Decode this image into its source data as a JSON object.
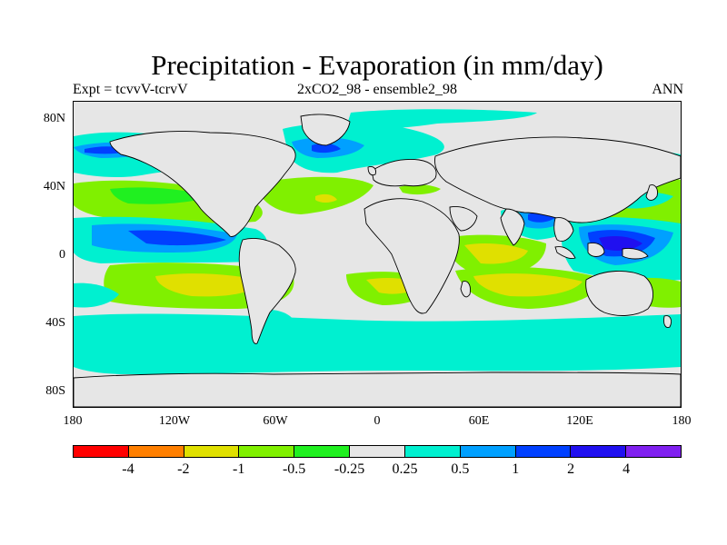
{
  "title": "Precipitation - Evaporation (in mm/day)",
  "subtitle_left": "Expt = tcvvV-tcrvV",
  "subtitle_center": "2xCO2_98 - ensemble2_98",
  "subtitle_right": "ANN",
  "lat_labels": [
    "80N",
    "40N",
    "0",
    "40S",
    "80S"
  ],
  "lon_labels": [
    "180",
    "120W",
    "60W",
    "0",
    "60E",
    "120E",
    "180"
  ],
  "legend": {
    "colors": [
      "#ff0000",
      "#ff7f00",
      "#e0e000",
      "#80f000",
      "#20f020",
      "#e6e6e6",
      "#00f0d0",
      "#00a0ff",
      "#0040ff",
      "#2010f0",
      "#8020f0"
    ],
    "labels": [
      "-4",
      "-2",
      "-1",
      "-0.5",
      "-0.25",
      "0.25",
      "0.5",
      "1",
      "2",
      "4"
    ]
  },
  "map_colors": {
    "background": "#e6e6e6",
    "coast": "#000000"
  }
}
